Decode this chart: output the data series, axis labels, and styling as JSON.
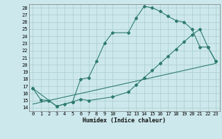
{
  "xlabel": "Humidex (Indice chaleur)",
  "bg_color": "#cce8ec",
  "grid_color": "#aacccc",
  "line_color": "#2e7b6e",
  "xlim": [
    -0.5,
    23.5
  ],
  "ylim": [
    13.5,
    28.5
  ],
  "xticks": [
    0,
    1,
    2,
    3,
    4,
    5,
    6,
    7,
    8,
    9,
    10,
    12,
    13,
    14,
    15,
    16,
    17,
    18,
    19,
    20,
    21,
    22,
    23
  ],
  "yticks": [
    14,
    15,
    16,
    17,
    18,
    19,
    20,
    21,
    22,
    23,
    24,
    25,
    26,
    27,
    28
  ],
  "curve1_x": [
    0,
    1,
    2,
    3,
    4,
    5,
    6,
    7,
    8,
    9,
    10,
    12,
    13,
    14,
    15,
    16,
    17,
    18,
    19,
    20,
    21,
    22,
    23
  ],
  "curve1_y": [
    16.7,
    15.1,
    15.0,
    14.2,
    14.5,
    14.8,
    18.0,
    18.2,
    20.5,
    23.0,
    24.5,
    24.5,
    26.6,
    28.2,
    28.0,
    27.5,
    26.8,
    26.2,
    26.0,
    25.0,
    22.5,
    22.5,
    20.5
  ],
  "curve2_x": [
    0,
    3,
    5,
    6,
    7,
    10,
    12,
    13,
    14,
    15,
    16,
    17,
    18,
    19,
    20,
    21,
    22,
    23
  ],
  "curve2_y": [
    16.7,
    14.2,
    14.8,
    15.2,
    15.0,
    15.5,
    16.2,
    17.2,
    18.2,
    19.2,
    20.2,
    21.2,
    22.2,
    23.2,
    24.2,
    25.0,
    22.5,
    20.5
  ],
  "curve3_x": [
    0,
    23
  ],
  "curve3_y": [
    14.5,
    20.2
  ]
}
